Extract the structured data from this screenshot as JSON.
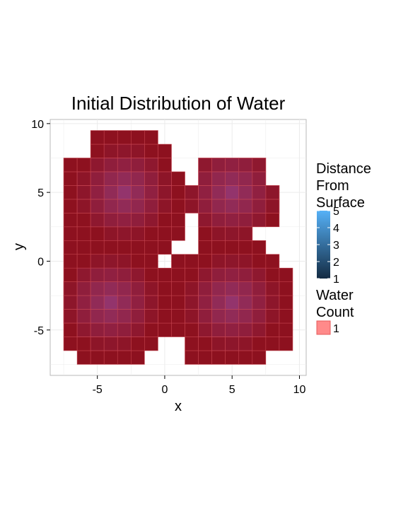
{
  "chart_data": {
    "type": "heatmap",
    "title": "Initial Distribution of Water",
    "xlabel": "x",
    "ylabel": "y",
    "xlim": [
      -8.5,
      10.5
    ],
    "ylim": [
      -8.3,
      10.3
    ],
    "xticks": [
      -5,
      0,
      5,
      10
    ],
    "yticks": [
      -5,
      0,
      5,
      10
    ],
    "xtick_labels": [
      "-5",
      "0",
      "5",
      "10"
    ],
    "ytick_labels": [
      "-5",
      "0",
      "5",
      "10"
    ],
    "grid": true,
    "background": "#ffffff",
    "panel_border": "#b8b8b8",
    "grid_color": "#ebebeb",
    "cell_fill": "#8d111f",
    "cell_border": "#c2414c",
    "overlay_color": "#9a5cc1",
    "sources": [
      {
        "cx": -3,
        "cy": 5
      },
      {
        "cx": -4,
        "cy": -3
      },
      {
        "cx": 5,
        "cy": -3
      },
      {
        "cx": 5,
        "cy": 5
      }
    ],
    "column_ranges": {
      "-7": [
        [
          -6,
          7
        ]
      ],
      "-6": [
        [
          -7,
          7
        ]
      ],
      "-5": [
        [
          -7,
          9
        ]
      ],
      "-4": [
        [
          -7,
          9
        ]
      ],
      "-3": [
        [
          -7,
          9
        ]
      ],
      "-2": [
        [
          -7,
          9
        ]
      ],
      "-1": [
        [
          -6,
          9
        ]
      ],
      "0": [
        [
          -5,
          -1
        ],
        [
          1,
          8
        ]
      ],
      "1": [
        [
          -5,
          0
        ],
        [
          2,
          6
        ]
      ],
      "2": [
        [
          -7,
          0
        ],
        [
          4,
          5
        ]
      ],
      "3": [
        [
          -7,
          7
        ]
      ],
      "4": [
        [
          -7,
          7
        ]
      ],
      "5": [
        [
          -7,
          7
        ]
      ],
      "6": [
        [
          -7,
          7
        ]
      ],
      "7": [
        [
          -7,
          1
        ],
        [
          3,
          7
        ]
      ],
      "8": [
        [
          -6,
          0
        ],
        [
          3,
          5
        ]
      ],
      "9": [
        [
          -6,
          -1
        ]
      ]
    },
    "legend": {
      "position": "right",
      "distance": {
        "title_lines": [
          "Distance",
          "From",
          "Surface"
        ],
        "labels": [
          "5",
          "4",
          "3",
          "2",
          "1"
        ],
        "range": [
          1,
          5
        ],
        "color_low": "#132b43",
        "color_high": "#56b1f7"
      },
      "water": {
        "title_lines": [
          "Water",
          "Count"
        ],
        "labels": [
          "1"
        ],
        "swatch_fill": "#ff8a8a",
        "swatch_border": "#e55b5b"
      }
    }
  }
}
